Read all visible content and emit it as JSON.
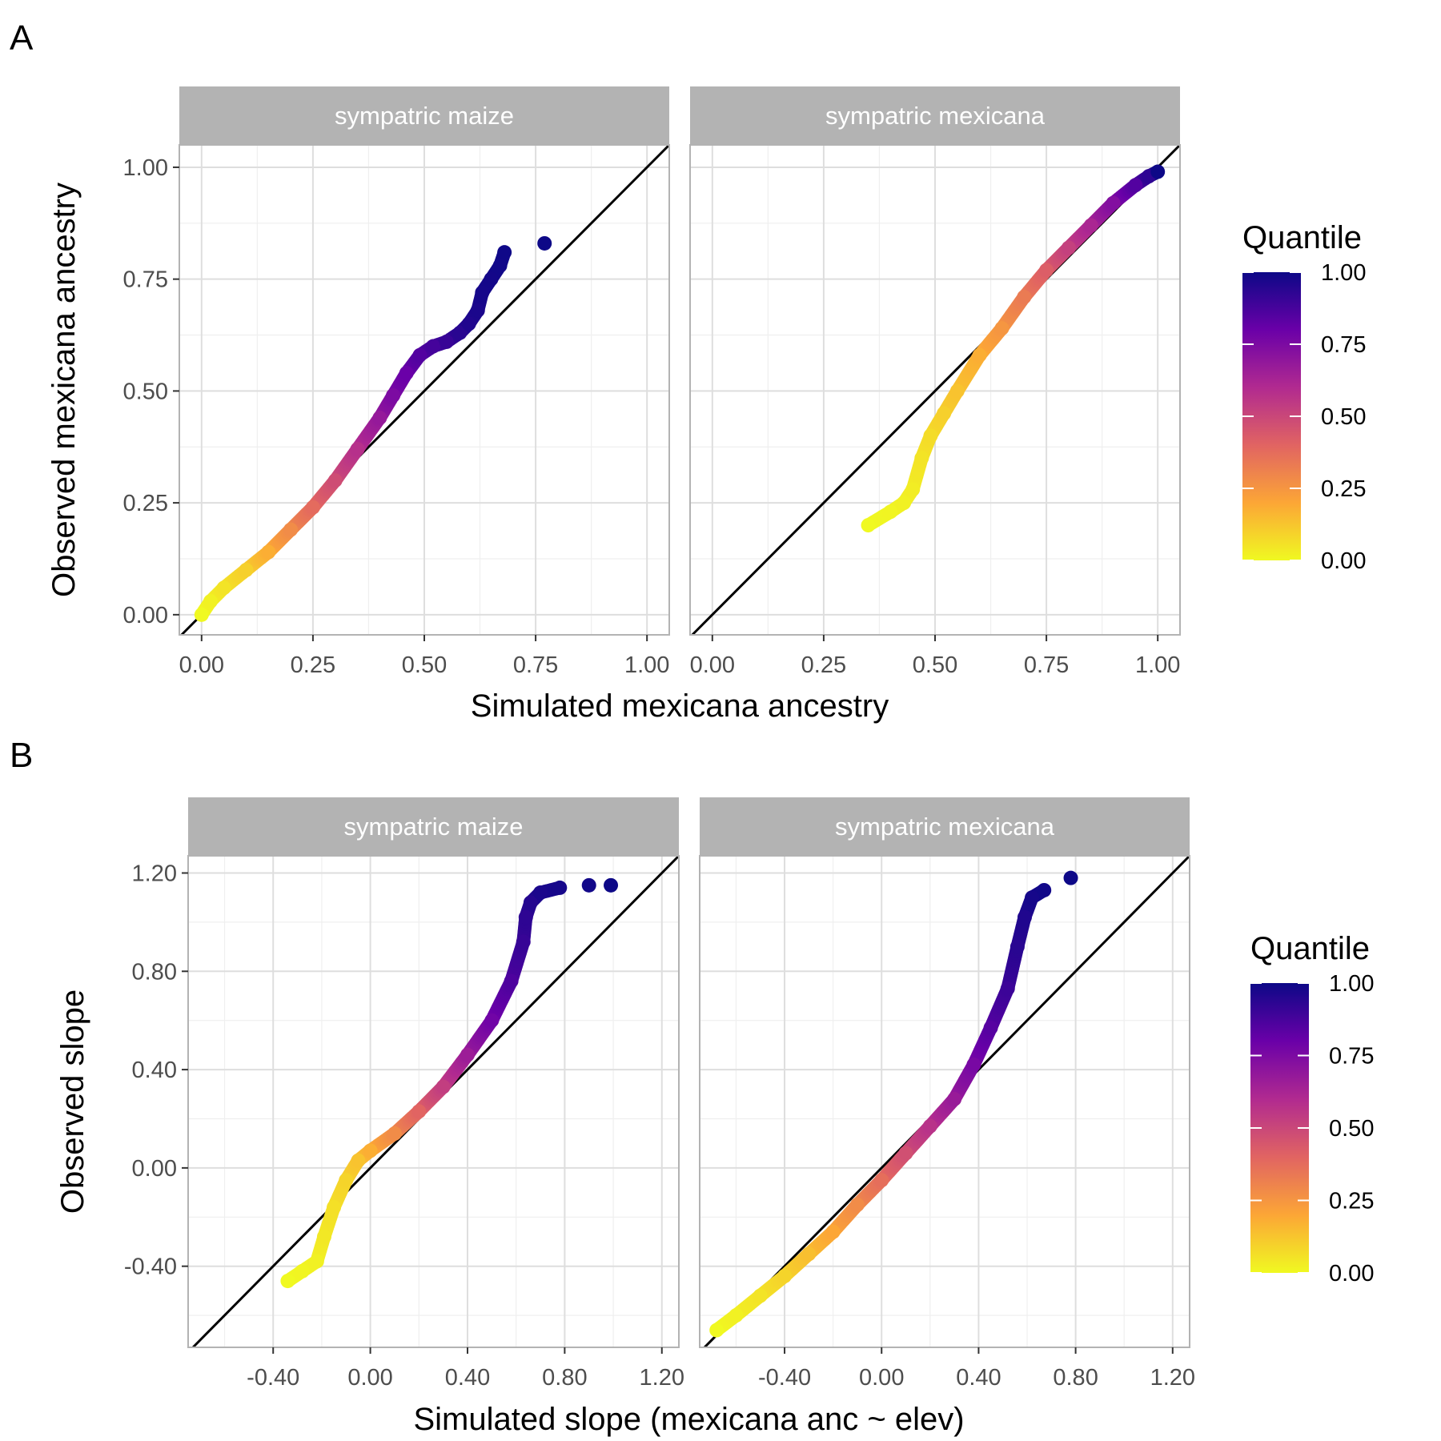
{
  "figure": {
    "panels": [
      {
        "letter": "A",
        "xlabel": "Simulated mexicana ancestry",
        "ylabel": "Observed mexicana ancestry",
        "legend_title": "Quantile",
        "legend_ticks": [
          "1.00",
          "0.75",
          "0.50",
          "0.25",
          "0.00"
        ]
      },
      {
        "letter": "B",
        "xlabel": "Simulated slope (mexicana anc ~ elev)",
        "ylabel": "Observed slope",
        "legend_title": "Quantile",
        "legend_ticks": [
          "1.00",
          "0.75",
          "0.50",
          "0.25",
          "0.00"
        ]
      }
    ]
  },
  "colors": {
    "strip_fill": "#b3b3b3",
    "grid_major": "#dedede",
    "grid_minor": "#efefef",
    "panel_border": "#b3b3b3",
    "identity_line": "#000000",
    "colorscale": [
      "#f0f921",
      "#fca636",
      "#e16462",
      "#b12a90",
      "#6a00a8",
      "#0d0887"
    ]
  },
  "chart_data": [
    {
      "type": "scatter",
      "panel": "A",
      "title": "",
      "xlabel": "Simulated mexicana ancestry",
      "ylabel": "Observed mexicana ancestry",
      "xlim": [
        -0.05,
        1.05
      ],
      "ylim": [
        -0.045,
        1.05
      ],
      "x_ticks": [
        "0.00",
        "0.25",
        "0.50",
        "0.75",
        "1.00"
      ],
      "y_ticks": [
        "0.00",
        "0.25",
        "0.50",
        "0.75",
        "1.00"
      ],
      "grid": true,
      "identity_line": true,
      "color_legend": {
        "title": "Quantile",
        "range": [
          0,
          1
        ],
        "placement": "right"
      },
      "facets": [
        {
          "label": "sympatric maize",
          "x": [
            0.0,
            0.02,
            0.05,
            0.1,
            0.15,
            0.2,
            0.25,
            0.3,
            0.35,
            0.4,
            0.43,
            0.46,
            0.49,
            0.52,
            0.55,
            0.58,
            0.6,
            0.62,
            0.63,
            0.65,
            0.67,
            0.68,
            0.77
          ],
          "y": [
            0.0,
            0.03,
            0.06,
            0.1,
            0.14,
            0.19,
            0.24,
            0.3,
            0.37,
            0.44,
            0.49,
            0.54,
            0.58,
            0.6,
            0.61,
            0.63,
            0.65,
            0.68,
            0.72,
            0.75,
            0.78,
            0.81,
            0.83
          ],
          "quantile": [
            0.0,
            0.02,
            0.05,
            0.1,
            0.18,
            0.28,
            0.38,
            0.48,
            0.58,
            0.68,
            0.75,
            0.8,
            0.85,
            0.88,
            0.91,
            0.94,
            0.96,
            0.97,
            0.98,
            0.985,
            0.99,
            0.995,
            1.0
          ]
        },
        {
          "label": "sympatric mexicana",
          "x": [
            0.35,
            0.4,
            0.43,
            0.45,
            0.47,
            0.49,
            0.52,
            0.55,
            0.6,
            0.65,
            0.7,
            0.75,
            0.8,
            0.85,
            0.9,
            0.95,
            0.98,
            1.0
          ],
          "y": [
            0.2,
            0.23,
            0.25,
            0.28,
            0.35,
            0.4,
            0.45,
            0.5,
            0.58,
            0.64,
            0.71,
            0.77,
            0.82,
            0.87,
            0.92,
            0.96,
            0.98,
            0.99
          ],
          "quantile": [
            0.0,
            0.01,
            0.02,
            0.03,
            0.05,
            0.07,
            0.1,
            0.13,
            0.18,
            0.25,
            0.33,
            0.42,
            0.52,
            0.62,
            0.73,
            0.85,
            0.93,
            1.0
          ]
        }
      ]
    },
    {
      "type": "scatter",
      "panel": "B",
      "title": "",
      "xlabel": "Simulated slope (mexicana anc ~ elev)",
      "ylabel": "Observed slope",
      "xlim": [
        -0.75,
        1.27
      ],
      "ylim": [
        -0.73,
        1.27
      ],
      "x_ticks": [
        "-0.40",
        "0.00",
        "0.40",
        "0.80",
        "1.20"
      ],
      "y_ticks": [
        "-0.40",
        "0.00",
        "0.40",
        "0.80",
        "1.20"
      ],
      "grid": true,
      "identity_line": true,
      "color_legend": {
        "title": "Quantile",
        "range": [
          0,
          1
        ],
        "placement": "right"
      },
      "facets": [
        {
          "label": "sympatric maize",
          "x": [
            -0.34,
            -0.28,
            -0.22,
            -0.19,
            -0.15,
            -0.1,
            -0.05,
            0.0,
            0.1,
            0.2,
            0.3,
            0.4,
            0.5,
            0.58,
            0.63,
            0.64,
            0.66,
            0.7,
            0.78,
            0.9,
            0.99
          ],
          "y": [
            -0.46,
            -0.42,
            -0.38,
            -0.28,
            -0.16,
            -0.05,
            0.03,
            0.07,
            0.14,
            0.23,
            0.33,
            0.46,
            0.6,
            0.76,
            0.92,
            1.02,
            1.08,
            1.12,
            1.14,
            1.15,
            1.15
          ],
          "quantile": [
            0.0,
            0.01,
            0.02,
            0.04,
            0.06,
            0.09,
            0.13,
            0.18,
            0.28,
            0.4,
            0.53,
            0.66,
            0.78,
            0.86,
            0.91,
            0.93,
            0.95,
            0.97,
            0.98,
            0.99,
            1.0
          ]
        },
        {
          "label": "sympatric mexicana",
          "x": [
            -0.68,
            -0.6,
            -0.5,
            -0.4,
            -0.3,
            -0.2,
            -0.1,
            0.0,
            0.1,
            0.2,
            0.3,
            0.38,
            0.45,
            0.52,
            0.56,
            0.59,
            0.62,
            0.67,
            0.78
          ],
          "y": [
            -0.66,
            -0.6,
            -0.52,
            -0.44,
            -0.35,
            -0.26,
            -0.15,
            -0.05,
            0.06,
            0.17,
            0.28,
            0.42,
            0.57,
            0.73,
            0.9,
            1.02,
            1.1,
            1.13,
            1.18
          ],
          "quantile": [
            0.0,
            0.02,
            0.05,
            0.09,
            0.14,
            0.2,
            0.28,
            0.37,
            0.47,
            0.57,
            0.67,
            0.76,
            0.84,
            0.9,
            0.94,
            0.96,
            0.98,
            0.99,
            1.0
          ]
        }
      ]
    }
  ]
}
